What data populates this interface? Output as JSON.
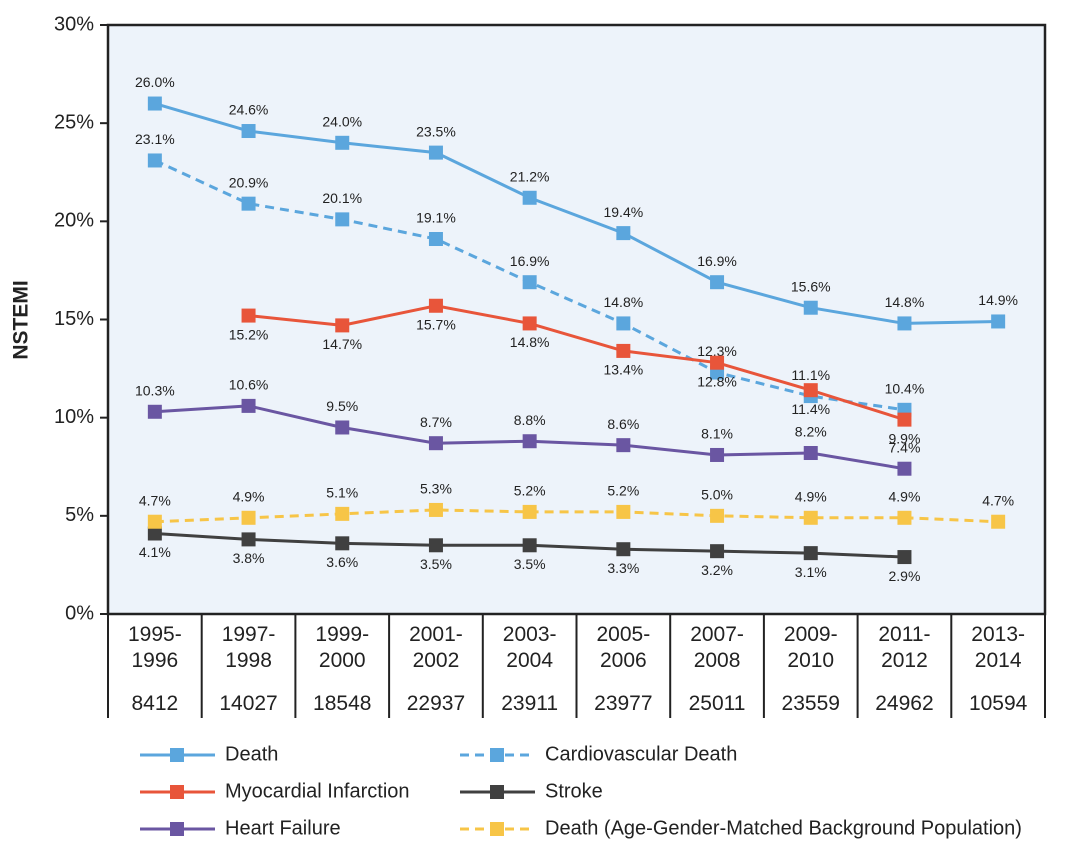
{
  "chart_data": {
    "type": "line",
    "y_label": "NSTEMI",
    "categories": [
      "1995-1996",
      "1997-1998",
      "1999-2000",
      "2001-2002",
      "2003-2004",
      "2005-2006",
      "2007-2008",
      "2009-2010",
      "2011-2012",
      "2013-2014"
    ],
    "sample_sizes": [
      8412,
      14027,
      18548,
      22937,
      23911,
      23977,
      25011,
      23559,
      24962,
      10594
    ],
    "ylim": [
      0,
      30
    ],
    "yticks": [
      {
        "value": 0,
        "label": "0%"
      },
      {
        "value": 5,
        "label": "5%"
      },
      {
        "value": 10,
        "label": "10%"
      },
      {
        "value": 15,
        "label": "15%"
      },
      {
        "value": 20,
        "label": "20%"
      },
      {
        "value": 25,
        "label": "25%"
      },
      {
        "value": 30,
        "label": "30%"
      }
    ],
    "series": [
      {
        "name": "Death",
        "color": "#5ba6dd",
        "dashed": false,
        "label_position": "above",
        "values": [
          26.0,
          24.6,
          24.0,
          23.5,
          21.2,
          19.4,
          16.9,
          15.6,
          14.8,
          14.9
        ],
        "value_labels": [
          "26.0%",
          "24.6%",
          "24.0%",
          "23.5%",
          "21.2%",
          "19.4%",
          "16.9%",
          "15.6%",
          "14.8%",
          "14.9%"
        ]
      },
      {
        "name": "Cardiovascular Death",
        "color": "#5ba6dd",
        "dashed": true,
        "label_position": "above",
        "values": [
          23.1,
          20.9,
          20.1,
          19.1,
          16.9,
          14.8,
          12.3,
          11.1,
          10.4,
          null
        ],
        "value_labels": [
          "23.1%",
          "20.9%",
          "20.1%",
          "19.1%",
          "16.9%",
          "14.8%",
          "12.3%",
          "11.1%",
          "10.4%",
          null
        ]
      },
      {
        "name": "Myocardial Infarction",
        "color": "#e8553a",
        "dashed": false,
        "label_position": "below",
        "values": [
          null,
          15.2,
          14.7,
          15.7,
          14.8,
          13.4,
          12.8,
          11.4,
          9.9,
          null
        ],
        "value_labels": [
          null,
          "15.2%",
          "14.7%",
          "15.7%",
          "14.8%",
          "13.4%",
          "12.8%",
          "11.4%",
          "9.9%",
          null
        ]
      },
      {
        "name": "Stroke",
        "color": "#404040",
        "dashed": false,
        "label_position": "below",
        "values": [
          4.1,
          3.8,
          3.6,
          3.5,
          3.5,
          3.3,
          3.2,
          3.1,
          2.9,
          null
        ],
        "value_labels": [
          "4.1%",
          "3.8%",
          "3.6%",
          "3.5%",
          "3.5%",
          "3.3%",
          "3.2%",
          "3.1%",
          "2.9%",
          null
        ]
      },
      {
        "name": "Heart Failure",
        "color": "#6a56a2",
        "dashed": false,
        "label_position": "above",
        "values": [
          10.3,
          10.6,
          9.5,
          8.7,
          8.8,
          8.6,
          8.1,
          8.2,
          7.4,
          null
        ],
        "value_labels": [
          "10.3%",
          "10.6%",
          "9.5%",
          "8.7%",
          "8.8%",
          "8.6%",
          "8.1%",
          "8.2%",
          "7.4%",
          null
        ]
      },
      {
        "name": "Death (Age-Gender-Matched Background Population)",
        "color": "#f7c547",
        "dashed": true,
        "label_position": "above",
        "values": [
          4.7,
          4.9,
          5.1,
          5.3,
          5.2,
          5.2,
          5.0,
          4.9,
          4.9,
          4.7
        ],
        "value_labels": [
          "4.7%",
          "4.9%",
          "5.1%",
          "5.3%",
          "5.2%",
          "5.2%",
          "5.0%",
          "4.9%",
          "4.9%",
          "4.7%"
        ]
      }
    ]
  }
}
